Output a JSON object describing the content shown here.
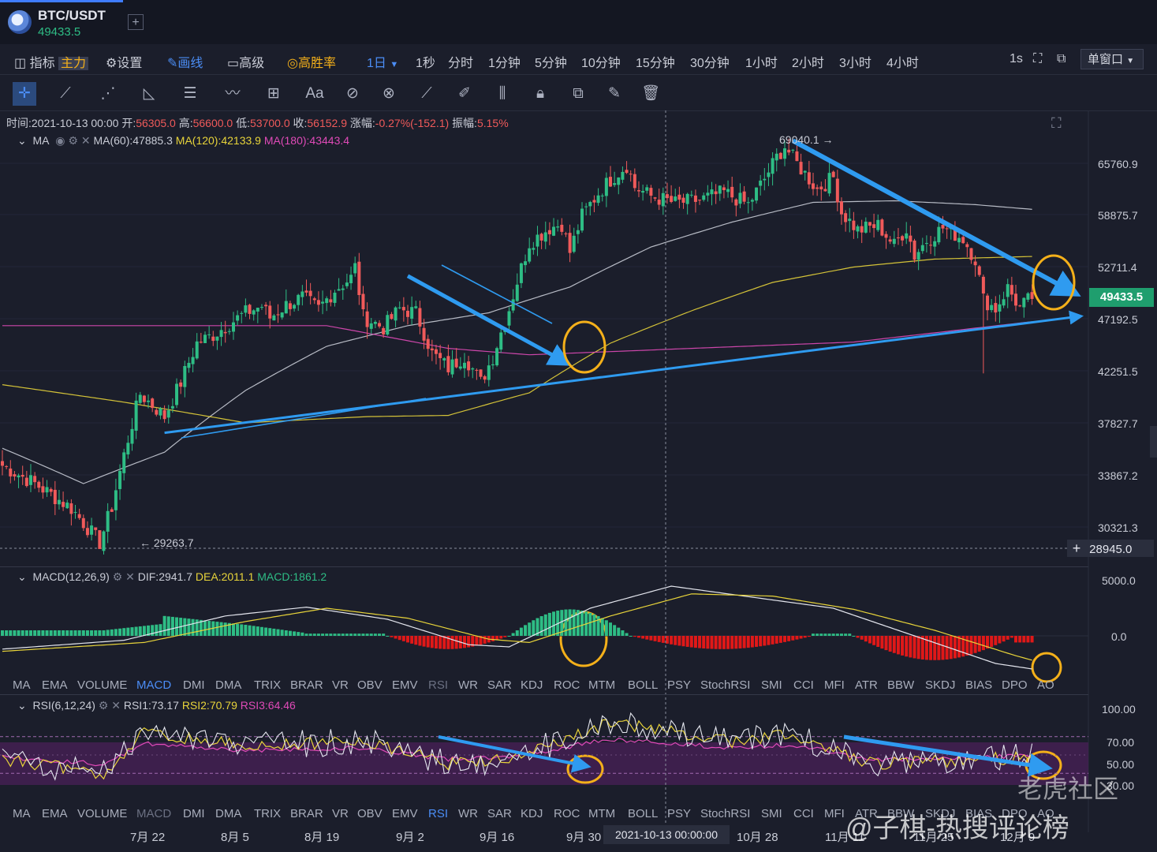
{
  "header": {
    "pair": "BTC/USDT",
    "price": "49433.5",
    "add": "+"
  },
  "toolbar": {
    "indicator": "指标",
    "main": "主力",
    "settings": "设置",
    "draw": "画线",
    "advanced": "高级",
    "winrate": "高胜率",
    "active_period": "1日",
    "periods": [
      "1秒",
      "分时",
      "1分钟",
      "5分钟",
      "10分钟",
      "15分钟",
      "30分钟",
      "1小时",
      "2小时",
      "3小时",
      "4小时"
    ],
    "speed": "1s",
    "window_select": "单窗口"
  },
  "tools": [
    "crosshair-icon",
    "trendline-icon",
    "multi-line-icon",
    "angle-icon",
    "parallel-lines-icon",
    "wave-icon",
    "box-plus-icon",
    "text-icon",
    "measure-icon",
    "magnet-icon",
    "ruler-icon",
    "pencil-icon",
    "sliders-icon",
    "lock-icon",
    "copy-icon",
    "edit-icon",
    "trash-icon"
  ],
  "ohlc": {
    "time": "时间:2021-10-13 00:00",
    "open_l": "开:",
    "open": "56305.0",
    "high_l": "高:",
    "high": "56600.0",
    "low_l": "低:",
    "low": "53700.0",
    "close_l": "收:",
    "close": "56152.9",
    "chg_l": "涨幅:",
    "chg": "-0.27%(-152.1)",
    "amp_l": "振幅:",
    "amp": "5.15%"
  },
  "ma_legend": {
    "name": "MA",
    "ma60": "MA(60):47885.3",
    "ma120": "MA(120):42133.9",
    "ma180": "MA(180):43443.4"
  },
  "macd_legend": {
    "name": "MACD(12,26,9)",
    "dif": "DIF:2941.7",
    "dea": "DEA:2011.1",
    "macd": "MACD:1861.2"
  },
  "rsi_legend": {
    "name": "RSI(6,12,24)",
    "rsi1": "RSI1:73.17",
    "rsi2": "RSI2:70.79",
    "rsi3": "RSI3:64.46"
  },
  "indicator_tabs": [
    "MA",
    "EMA",
    "VOLUME",
    "MACD",
    "DMI",
    "DMA",
    "TRIX",
    "BRAR",
    "VR",
    "OBV",
    "EMV",
    "RSI",
    "WR",
    "SAR",
    "KDJ",
    "ROC",
    "MTM",
    "BOLL",
    "PSY",
    "StochRSI",
    "SMI",
    "CCI",
    "MFI",
    "ATR",
    "BBW",
    "SKDJ",
    "BIAS",
    "DPO",
    "AO"
  ],
  "price_axis": [
    "65760.9",
    "58875.7",
    "52711.4",
    "47192.5",
    "42251.5",
    "37827.7",
    "33867.2",
    "30321.3"
  ],
  "last_price": "49433.5",
  "cross_price": "28945.0",
  "macd_axis": [
    "5000.0",
    "0.0"
  ],
  "rsi_axis": [
    "100.00",
    "70.00",
    "50.00",
    "30.00"
  ],
  "date_axis": [
    "7月 22",
    "8月 5",
    "8月 19",
    "9月 2",
    "9月 16",
    "9月 30",
    "10月 28",
    "11月 11",
    "11月 25",
    "12月 9"
  ],
  "cross_date": "2021-10-13 00:00:00",
  "annotations": {
    "high": "69040.1",
    "low": "29263.7"
  },
  "watermarks": {
    "a": "老虎社区",
    "b": "@子棋-热搜评论榜"
  },
  "colors": {
    "up": "#2ebd85",
    "down": "#f05a5a",
    "ma60": "#c9ccd6",
    "ma120": "#e8d43a",
    "ma180": "#e04ab8",
    "arrow": "#2f9bf0",
    "circle": "#f4b01a"
  },
  "chart_data": {
    "type": "candlestick",
    "title": "BTC/USDT 1日",
    "x_range": [
      "2021-07-08",
      "2021-12-18"
    ],
    "y_scale": "log",
    "ylim": [
      28500,
      69500
    ],
    "waypoints": [
      [
        0,
        34500
      ],
      [
        8,
        33200
      ],
      [
        17,
        31500
      ],
      [
        24,
        29264
      ],
      [
        27,
        31600
      ],
      [
        31,
        36500
      ],
      [
        34,
        40200
      ],
      [
        40,
        38300
      ],
      [
        44,
        41200
      ],
      [
        48,
        44800
      ],
      [
        52,
        45600
      ],
      [
        56,
        46700
      ],
      [
        60,
        47800
      ],
      [
        64,
        48500
      ],
      [
        66,
        47300
      ],
      [
        70,
        48600
      ],
      [
        74,
        49400
      ],
      [
        78,
        48200
      ],
      [
        82,
        50200
      ],
      [
        86,
        51500
      ],
      [
        87,
        52700
      ],
      [
        89,
        47400
      ],
      [
        94,
        46300
      ],
      [
        98,
        48200
      ],
      [
        102,
        47800
      ],
      [
        106,
        43800
      ],
      [
        110,
        42500
      ],
      [
        114,
        43600
      ],
      [
        118,
        41200
      ],
      [
        121,
        43500
      ],
      [
        125,
        48200
      ],
      [
        130,
        55500
      ],
      [
        135,
        57300
      ],
      [
        138,
        57800
      ],
      [
        140,
        54400
      ],
      [
        143,
        58800
      ],
      [
        147,
        61700
      ],
      [
        150,
        63500
      ],
      [
        154,
        65500
      ],
      [
        156,
        62500
      ],
      [
        160,
        61300
      ],
      [
        166,
        60400
      ],
      [
        172,
        60800
      ],
      [
        178,
        61800
      ],
      [
        184,
        60200
      ],
      [
        188,
        63600
      ],
      [
        191,
        66600
      ],
      [
        193,
        68200
      ],
      [
        196,
        65700
      ],
      [
        201,
        62200
      ],
      [
        205,
        63800
      ],
      [
        207,
        59200
      ],
      [
        211,
        57000
      ],
      [
        216,
        57600
      ],
      [
        220,
        55200
      ],
      [
        223,
        57300
      ],
      [
        225,
        54000
      ],
      [
        228,
        55800
      ],
      [
        232,
        57300
      ],
      [
        237,
        56000
      ],
      [
        240,
        53600
      ],
      [
        242,
        49200
      ],
      [
        245,
        48200
      ],
      [
        248,
        50400
      ],
      [
        251,
        48300
      ],
      [
        254,
        49433
      ]
    ],
    "ma_series": [
      {
        "name": "MA(60)",
        "points": [
          [
            0,
            35800
          ],
          [
            20,
            33200
          ],
          [
            40,
            35500
          ],
          [
            60,
            40500
          ],
          [
            80,
            44500
          ],
          [
            100,
            46500
          ],
          [
            120,
            47800
          ],
          [
            140,
            50500
          ],
          [
            160,
            55000
          ],
          [
            180,
            58000
          ],
          [
            200,
            60500
          ],
          [
            220,
            60700
          ],
          [
            240,
            60200
          ],
          [
            254,
            59600
          ]
        ]
      },
      {
        "name": "MA(120)",
        "points": [
          [
            0,
            41000
          ],
          [
            30,
            39500
          ],
          [
            60,
            37800
          ],
          [
            90,
            38300
          ],
          [
            110,
            38400
          ],
          [
            130,
            40300
          ],
          [
            150,
            44800
          ],
          [
            170,
            48000
          ],
          [
            190,
            51000
          ],
          [
            210,
            52700
          ],
          [
            230,
            53600
          ],
          [
            254,
            53900
          ]
        ]
      },
      {
        "name": "MA(180)",
        "points": [
          [
            0,
            46500
          ],
          [
            80,
            46500
          ],
          [
            110,
            44300
          ],
          [
            130,
            43700
          ],
          [
            150,
            44000
          ],
          [
            170,
            44300
          ],
          [
            190,
            44600
          ],
          [
            210,
            44900
          ],
          [
            230,
            45800
          ],
          [
            254,
            46900
          ]
        ]
      }
    ],
    "trendlines": [
      {
        "from": [
          40,
          37000
        ],
        "to": [
          265,
          47400
        ]
      },
      {
        "from": [
          100,
          51700
        ],
        "to": [
          138,
          43200
        ]
      },
      {
        "from": [
          195,
          69000
        ],
        "to": [
          263,
          50200
        ]
      }
    ],
    "macd": {
      "dif": 2941.7,
      "dea": 2011.1,
      "macd": 1861.2,
      "ylim": [
        -5000,
        8000
      ]
    },
    "rsi": {
      "rsi1": 73.17,
      "rsi2": 70.79,
      "rsi3": 64.46,
      "ylim": [
        0,
        100
      ],
      "band": [
        30,
        70
      ]
    }
  }
}
